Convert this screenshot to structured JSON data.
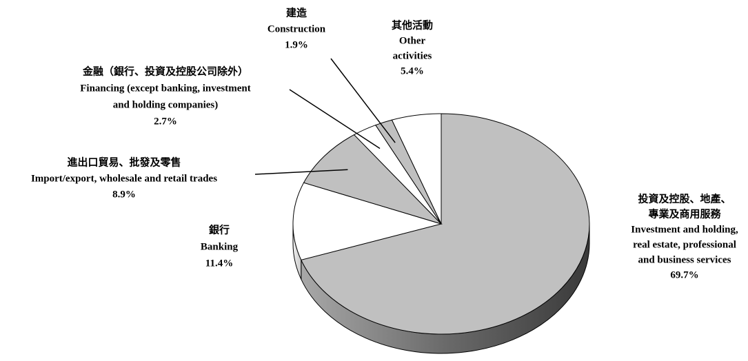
{
  "chart_data": {
    "type": "pie",
    "labels": [
      {
        "zh": [
          "投資及控股、地產、",
          "專業及商用服務"
        ],
        "en": [
          "Investment and holding,",
          "real estate, professional",
          "and business services"
        ]
      },
      {
        "zh": [
          "銀行"
        ],
        "en": [
          "Banking"
        ]
      },
      {
        "zh": [
          "進出口貿易、批發及零售"
        ],
        "en": [
          "Import/export, wholesale and retail trades"
        ]
      },
      {
        "zh": [
          "金融（銀行、投資及控股公司除外）"
        ],
        "en": [
          "Financing (except banking, investment",
          "and holding companies)"
        ]
      },
      {
        "zh": [
          "建造"
        ],
        "en": [
          "Construction"
        ]
      },
      {
        "zh": [
          "其他活動"
        ],
        "en": [
          "Other",
          "activities"
        ]
      }
    ],
    "values": [
      69.7,
      11.4,
      8.9,
      2.7,
      1.9,
      5.4
    ],
    "value_labels": [
      "69.7%",
      "11.4%",
      "8.9%",
      "2.7%",
      "1.9%",
      "5.4%"
    ],
    "colors": [
      "#c0c0c0",
      "#ffffff",
      "#c0c0c0",
      "#ffffff",
      "#c0c0c0",
      "#ffffff"
    ]
  }
}
